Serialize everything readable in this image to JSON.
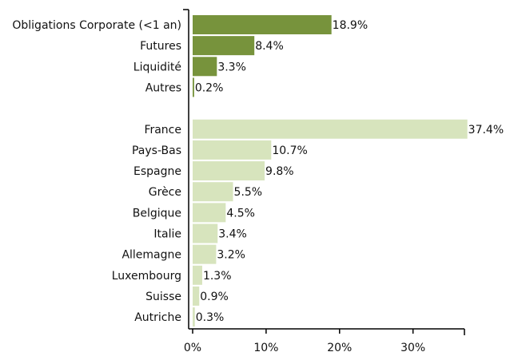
{
  "chart_data": {
    "type": "hbar",
    "categories": [
      "Obligations Corporate (<1 an)",
      "Futures",
      "Liquidité",
      "Autres",
      null,
      "France",
      "Pays-Bas",
      "Espagne",
      "Grèce",
      "Belgique",
      "Italie",
      "Allemagne",
      "Luxembourg",
      "Suisse",
      "Autriche"
    ],
    "values": [
      18.9,
      8.4,
      3.3,
      0.2,
      null,
      37.4,
      10.7,
      9.8,
      5.5,
      4.5,
      3.4,
      3.2,
      1.3,
      0.9,
      0.3
    ],
    "value_labels": [
      "18.9%",
      "8.4%",
      "3.3%",
      "0.2%",
      null,
      "37.4%",
      "10.7%",
      "9.8%",
      "5.5%",
      "4.5%",
      "3.4%",
      "3.2%",
      "1.3%",
      "0.9%",
      "0.3%"
    ],
    "colors": [
      "#77933c",
      "#77933c",
      "#77933c",
      "#77933c",
      null,
      "#d7e4bd",
      "#d7e4bd",
      "#d7e4bd",
      "#d7e4bd",
      "#d7e4bd",
      "#d7e4bd",
      "#d7e4bd",
      "#d7e4bd",
      "#d7e4bd",
      "#d7e4bd"
    ],
    "xlim": [
      0,
      37
    ],
    "xticks": [
      {
        "value": 0,
        "label": "0%"
      },
      {
        "value": 10,
        "label": "10%"
      },
      {
        "value": 20,
        "label": "20%"
      },
      {
        "value": 30,
        "label": "30%"
      }
    ]
  }
}
